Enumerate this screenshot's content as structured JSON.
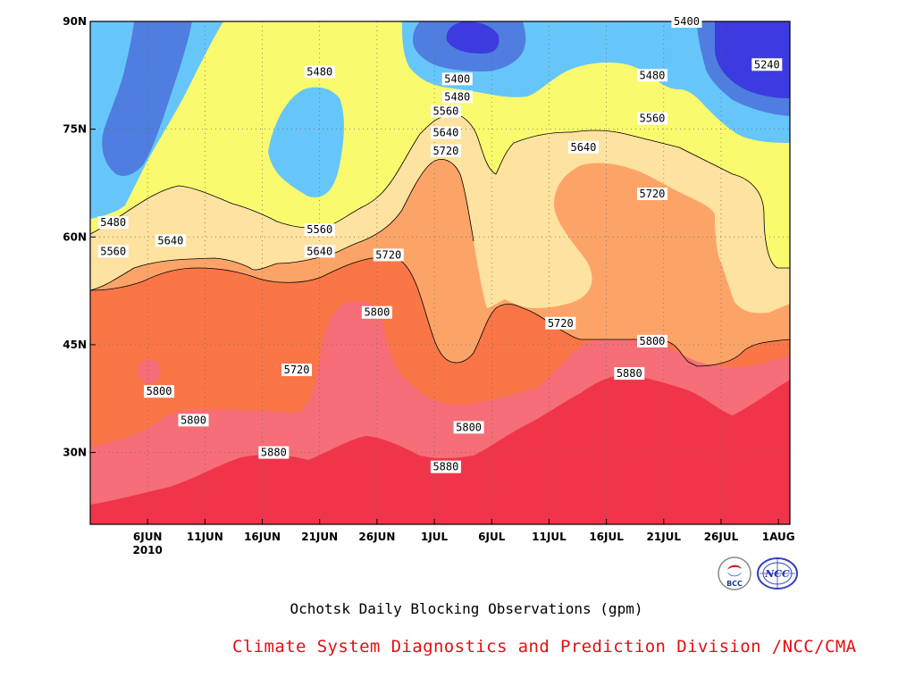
{
  "chart_data": {
    "type": "contour",
    "title": "Ochotsk Daily Blocking Observations (gpm)",
    "xlabel": "",
    "ylabel": "",
    "x_ticks": [
      "6JUN",
      "11JUN",
      "16JUN",
      "21JUN",
      "26JUN",
      "1JUL",
      "6JUL",
      "11JUL",
      "16JUL",
      "21JUL",
      "26JUL",
      "1AUG"
    ],
    "x_year_label": "2010",
    "y_ticks": [
      "30N",
      "45N",
      "60N",
      "75N",
      "90N"
    ],
    "x_range": [
      "2010-06-01",
      "2010-08-01"
    ],
    "y_range": [
      20,
      90
    ],
    "grid": true,
    "levels": [
      5240,
      5320,
      5400,
      5480,
      5560,
      5640,
      5720,
      5800,
      5880
    ],
    "fill_colors": [
      "#3b3be0",
      "#4f7ee0",
      "#5aa2ee",
      "#66c6fa",
      "#fafa6e",
      "#fde2a0",
      "#fca468",
      "#fa7647",
      "#f56e78",
      "#f0354a"
    ],
    "contour_labels": [
      {
        "text": "5400",
        "date": "2010-07-23",
        "lat": 90
      },
      {
        "text": "5240",
        "date": "2010-07-30",
        "lat": 84
      },
      {
        "text": "5480",
        "date": "2010-06-21",
        "lat": 83
      },
      {
        "text": "5400",
        "date": "2010-07-03",
        "lat": 82
      },
      {
        "text": "5480",
        "date": "2010-07-03",
        "lat": 79.5
      },
      {
        "text": "5480",
        "date": "2010-07-20",
        "lat": 82.5
      },
      {
        "text": "5560",
        "date": "2010-07-02",
        "lat": 77.5
      },
      {
        "text": "5560",
        "date": "2010-07-20",
        "lat": 76.5
      },
      {
        "text": "5640",
        "date": "2010-07-02",
        "lat": 74.5
      },
      {
        "text": "5720",
        "date": "2010-07-02",
        "lat": 72
      },
      {
        "text": "5640",
        "date": "2010-07-14",
        "lat": 72.5
      },
      {
        "text": "5720",
        "date": "2010-07-20",
        "lat": 66
      },
      {
        "text": "5480",
        "date": "2010-06-03",
        "lat": 62
      },
      {
        "text": "5560",
        "date": "2010-06-21",
        "lat": 61
      },
      {
        "text": "5640",
        "date": "2010-06-08",
        "lat": 59.5
      },
      {
        "text": "5560",
        "date": "2010-06-03",
        "lat": 58
      },
      {
        "text": "5640",
        "date": "2010-06-21",
        "lat": 58
      },
      {
        "text": "5720",
        "date": "2010-06-27",
        "lat": 57.5
      },
      {
        "text": "5800",
        "date": "2010-06-26",
        "lat": 49.5
      },
      {
        "text": "5720",
        "date": "2010-07-12",
        "lat": 48
      },
      {
        "text": "5800",
        "date": "2010-07-20",
        "lat": 45.5
      },
      {
        "text": "5720",
        "date": "2010-06-19",
        "lat": 41.5
      },
      {
        "text": "5800",
        "date": "2010-06-07",
        "lat": 38.5
      },
      {
        "text": "5880",
        "date": "2010-07-18",
        "lat": 41
      },
      {
        "text": "5800",
        "date": "2010-06-10",
        "lat": 34.5
      },
      {
        "text": "5800",
        "date": "2010-07-04",
        "lat": 33.5
      },
      {
        "text": "5880",
        "date": "2010-06-17",
        "lat": 30
      },
      {
        "text": "5880",
        "date": "2010-07-02",
        "lat": 28
      }
    ]
  },
  "footer": {
    "text": "Climate System Diagnostics and Prediction Division /NCC/CMA",
    "color": "#e01010"
  },
  "logos": {
    "left_text": "BCC",
    "right_text": "NCC"
  }
}
